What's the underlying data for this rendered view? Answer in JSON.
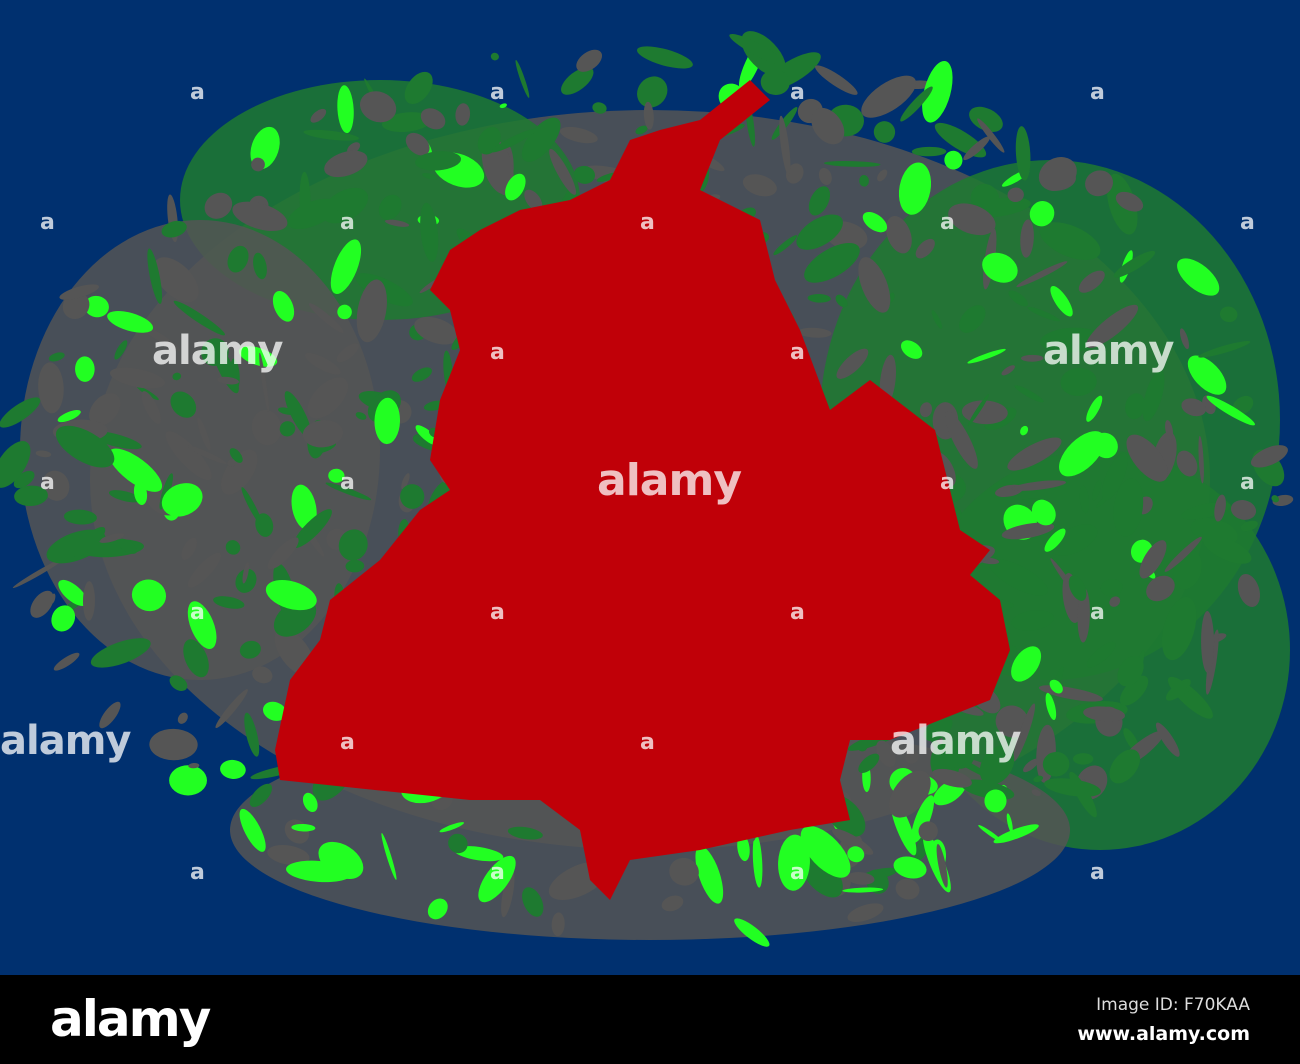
{
  "colors": {
    "background": "#00306f",
    "region": "#c00008",
    "splatter_dark_green": "#1e7a30",
    "splatter_gray": "#555555",
    "splatter_bright_green": "#22ff22",
    "footer": "#000000"
  },
  "watermark": "alamy",
  "footer": {
    "logo": "alamy",
    "image_id": "Image ID: F70KAA",
    "site": "www.alamy.com"
  }
}
